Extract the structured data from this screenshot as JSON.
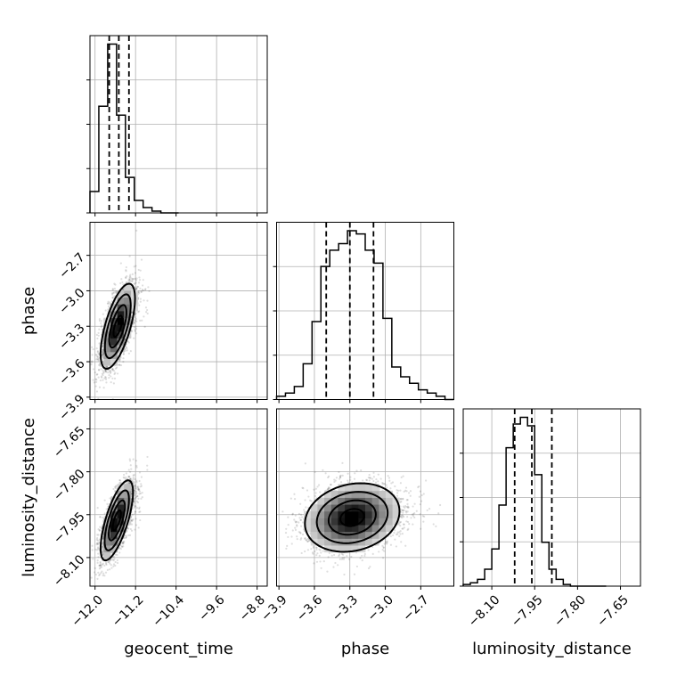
{
  "chart_data": {
    "type": "corner",
    "parameters": [
      {
        "name": "geocent_time",
        "range": [
          -12.1,
          -8.6
        ],
        "ticks": [
          -12.0,
          -11.2,
          -10.4,
          -9.6,
          -8.8
        ],
        "tick_labels": [
          "−12.0",
          "−11.2",
          "−10.4",
          "−9.6",
          "−8.8"
        ],
        "quantiles": [
          -11.72,
          -11.53,
          -11.33
        ],
        "hist": {
          "edges": [
            -12.1,
            -11.925,
            -11.75,
            -11.575,
            -11.4,
            -11.225,
            -11.05,
            -10.875,
            -10.7,
            -10.525,
            -10.35
          ],
          "counts": [
            12,
            60,
            95,
            55,
            20,
            7,
            3,
            1,
            0,
            0
          ]
        }
      },
      {
        "name": "phase",
        "range": [
          -3.92,
          -2.42
        ],
        "ticks": [
          -3.9,
          -3.6,
          -3.3,
          -3.0,
          -2.7
        ],
        "tick_labels": [
          "−3.9",
          "−3.6",
          "−3.3",
          "−3.0",
          "−2.7"
        ],
        "quantiles": [
          -3.5,
          -3.3,
          -3.1
        ],
        "hist": {
          "edges": [
            -3.92,
            -3.845,
            -3.77,
            -3.695,
            -3.62,
            -3.545,
            -3.47,
            -3.395,
            -3.32,
            -3.245,
            -3.17,
            -3.095,
            -3.02,
            -2.945,
            -2.87,
            -2.795,
            -2.72,
            -2.645,
            -2.57,
            -2.495,
            -2.42
          ],
          "counts": [
            1,
            2,
            4,
            11,
            24,
            41,
            46,
            48,
            52,
            51,
            46,
            42,
            25,
            10,
            7,
            5,
            3,
            2,
            1,
            0
          ]
        }
      },
      {
        "name": "luminosity_distance",
        "range": [
          -8.2,
          -7.58
        ],
        "ticks": [
          -8.1,
          -7.95,
          -7.8,
          -7.65
        ],
        "tick_labels": [
          "−8.10",
          "−7.95",
          "−7.80",
          "−7.65"
        ],
        "quantiles": [
          -8.02,
          -7.96,
          -7.89
        ],
        "hist": {
          "edges": [
            -8.2,
            -8.175,
            -8.15,
            -8.125,
            -8.1,
            -8.075,
            -8.05,
            -8.025,
            -8.0,
            -7.975,
            -7.95,
            -7.925,
            -7.9,
            -7.875,
            -7.85,
            -7.825,
            -7.8,
            -7.775,
            -7.75,
            -7.725,
            -7.7
          ],
          "counts": [
            1,
            2,
            4,
            10,
            22,
            48,
            82,
            96,
            100,
            95,
            66,
            26,
            10,
            4,
            1,
            0,
            0,
            0,
            0,
            0
          ]
        }
      }
    ],
    "scatter_panels": [
      {
        "x": "geocent_time",
        "y": "phase",
        "center": [
          -11.55,
          -3.3
        ],
        "spread": [
          0.17,
          0.18
        ],
        "correlation": 0.65,
        "contour_levels": [
          0.5,
          1.0,
          1.5,
          2.0
        ]
      },
      {
        "x": "geocent_time",
        "y": "luminosity_distance",
        "center": [
          -11.57,
          -7.97
        ],
        "spread": [
          0.16,
          0.07
        ],
        "correlation": 0.7,
        "contour_levels": [
          0.5,
          1.0,
          1.5,
          2.0
        ]
      },
      {
        "x": "phase",
        "y": "luminosity_distance",
        "center": [
          -3.28,
          -7.96
        ],
        "spread": [
          0.2,
          0.06
        ],
        "correlation": 0.18,
        "contour_levels": [
          0.5,
          1.0,
          1.5,
          2.0
        ]
      }
    ],
    "grid": true,
    "diag_hist_ylim_max": 100
  }
}
